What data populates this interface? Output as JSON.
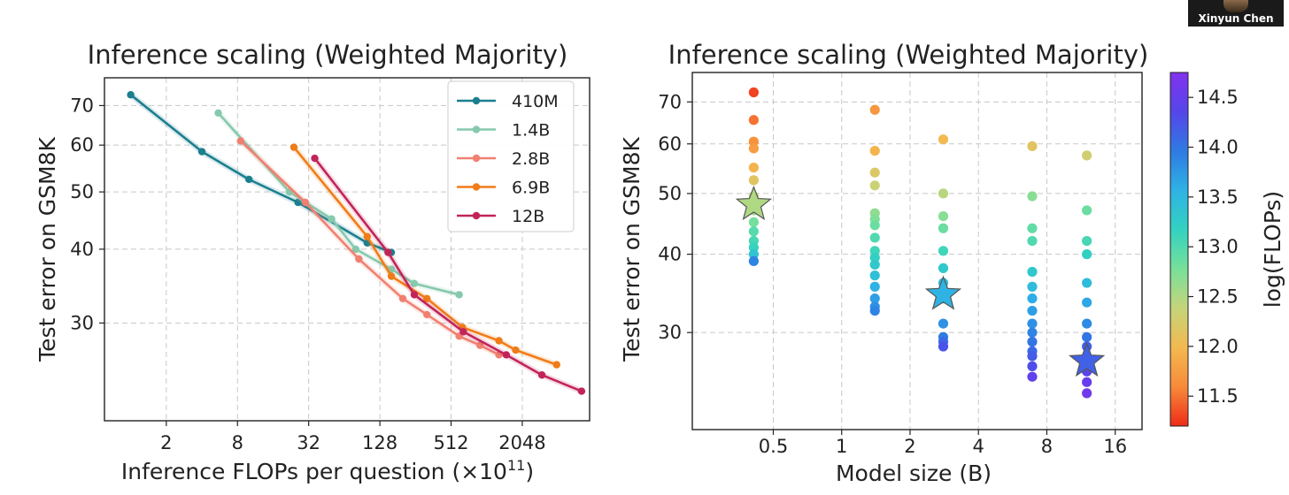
{
  "presenter": {
    "name": "Xinyun Chen"
  },
  "chart_data": [
    {
      "type": "line",
      "title": "Inference scaling (Weighted Majority)",
      "xlabel": "Inference FLOPs per question (×10",
      "xlabel_sup": "11",
      "xlabel_suffix": ")",
      "ylabel": "Test error on GSM8K",
      "x_scale": "log2",
      "y_scale": "log",
      "xlim": [
        0.6,
        7600
      ],
      "ylim": [
        20.5,
        78
      ],
      "xticks": [
        2,
        8,
        32,
        128,
        512,
        2048
      ],
      "xtick_labels": [
        "2",
        "8",
        "32",
        "128",
        "512",
        "2048"
      ],
      "yticks": [
        30,
        40,
        50,
        60,
        70
      ],
      "ytick_labels": [
        "30",
        "40",
        "50",
        "60",
        "70"
      ],
      "grid": true,
      "legend_position": "top-right",
      "series": [
        {
          "name": "410M",
          "color": "#1b7f8e",
          "x": [
            1,
            4,
            10,
            26,
            100,
            160
          ],
          "y": [
            73,
            58.5,
            52.5,
            48,
            41,
            39.5
          ]
        },
        {
          "name": "1.4B",
          "color": "#86c9ad",
          "x": [
            5.5,
            22,
            50,
            80,
            160,
            250,
            600
          ],
          "y": [
            68,
            50,
            45,
            40,
            37,
            35,
            33.5
          ]
        },
        {
          "name": "2.8B",
          "color": "#f08070",
          "x": [
            8.5,
            30,
            85,
            200,
            320,
            600,
            900,
            1300
          ],
          "y": [
            61,
            48,
            38.5,
            33,
            31,
            28.5,
            27.5,
            26.5
          ]
        },
        {
          "name": "6.9B",
          "color": "#f07c18",
          "x": [
            24,
            100,
            160,
            320,
            640,
            1300,
            1800,
            4000
          ],
          "y": [
            59.5,
            42,
            36,
            33,
            29.5,
            28,
            27,
            25.5
          ]
        },
        {
          "name": "12B",
          "color": "#c2245a",
          "x": [
            36,
            150,
            250,
            650,
            1500,
            3000,
            6500
          ],
          "y": [
            57,
            39.5,
            33.5,
            29,
            26.5,
            24.5,
            23
          ]
        }
      ]
    },
    {
      "type": "scatter",
      "title": "Inference scaling (Weighted Majority)",
      "xlabel": "Model size (B)",
      "ylabel": "Test error on GSM8K",
      "x_scale": "log2",
      "y_scale": "log",
      "xlim": [
        0.22,
        21
      ],
      "ylim": [
        21,
        78
      ],
      "xticks": [
        0.5,
        1,
        2,
        4,
        8,
        16
      ],
      "xtick_labels": [
        "0.5",
        "1",
        "2",
        "4",
        "8",
        "16"
      ],
      "yticks": [
        30,
        40,
        50,
        60,
        70
      ],
      "ytick_labels": [
        "30",
        "40",
        "50",
        "60",
        "70"
      ],
      "grid": true,
      "colorbar": {
        "label": "log(FLOPs)",
        "range": [
          11.2,
          14.75
        ],
        "ticks": [
          11.5,
          12.0,
          12.5,
          13.0,
          13.5,
          14.0,
          14.5
        ],
        "tick_labels": [
          "11.5",
          "12.0",
          "12.5",
          "13.0",
          "13.5",
          "14.0",
          "14.5"
        ],
        "colors": [
          "#ef2b18",
          "#f88a3a",
          "#f3b950",
          "#c6d47a",
          "#78e09a",
          "#32d2c0",
          "#2fb2e6",
          "#2f7ae2",
          "#5546ea",
          "#8232ee"
        ]
      },
      "points": [
        {
          "x": 0.41,
          "y": 72.5,
          "c": 11.3
        },
        {
          "x": 0.41,
          "y": 65.5,
          "c": 11.5
        },
        {
          "x": 0.41,
          "y": 60.5,
          "c": 11.65
        },
        {
          "x": 0.41,
          "y": 59,
          "c": 11.75
        },
        {
          "x": 0.41,
          "y": 55,
          "c": 11.95
        },
        {
          "x": 0.41,
          "y": 52.5,
          "c": 12.15
        },
        {
          "x": 0.41,
          "y": 49.5,
          "c": 12.4
        },
        {
          "x": 0.41,
          "y": 47,
          "c": 12.6
        },
        {
          "x": 0.41,
          "y": 45,
          "c": 12.8
        },
        {
          "x": 0.41,
          "y": 43.5,
          "c": 12.95
        },
        {
          "x": 0.41,
          "y": 42,
          "c": 13.05
        },
        {
          "x": 0.41,
          "y": 41,
          "c": 13.15
        },
        {
          "x": 0.41,
          "y": 40,
          "c": 13.35
        },
        {
          "x": 0.41,
          "y": 39,
          "c": 13.9
        },
        {
          "x": 1.4,
          "y": 68,
          "c": 11.7
        },
        {
          "x": 1.4,
          "y": 58.5,
          "c": 11.95
        },
        {
          "x": 1.4,
          "y": 54,
          "c": 12.2
        },
        {
          "x": 1.4,
          "y": 51.5,
          "c": 12.35
        },
        {
          "x": 1.4,
          "y": 46.5,
          "c": 12.65
        },
        {
          "x": 1.4,
          "y": 45.5,
          "c": 12.75
        },
        {
          "x": 1.4,
          "y": 44.5,
          "c": 12.85
        },
        {
          "x": 1.4,
          "y": 42.5,
          "c": 13.0
        },
        {
          "x": 1.4,
          "y": 40.5,
          "c": 13.1
        },
        {
          "x": 1.4,
          "y": 39.5,
          "c": 13.2
        },
        {
          "x": 1.4,
          "y": 38.5,
          "c": 13.3
        },
        {
          "x": 1.4,
          "y": 37,
          "c": 13.4
        },
        {
          "x": 1.4,
          "y": 35.5,
          "c": 13.55
        },
        {
          "x": 1.4,
          "y": 34,
          "c": 13.7
        },
        {
          "x": 1.4,
          "y": 33,
          "c": 13.8
        },
        {
          "x": 1.4,
          "y": 32.5,
          "c": 13.9
        },
        {
          "x": 2.8,
          "y": 61,
          "c": 12.0
        },
        {
          "x": 2.8,
          "y": 50,
          "c": 12.45
        },
        {
          "x": 2.8,
          "y": 46,
          "c": 12.7
        },
        {
          "x": 2.8,
          "y": 44,
          "c": 12.85
        },
        {
          "x": 2.8,
          "y": 40.5,
          "c": 13.1
        },
        {
          "x": 2.8,
          "y": 38,
          "c": 13.3
        },
        {
          "x": 2.8,
          "y": 36,
          "c": 13.45
        },
        {
          "x": 2.8,
          "y": 34,
          "c": 13.6
        },
        {
          "x": 2.8,
          "y": 31,
          "c": 13.8
        },
        {
          "x": 2.8,
          "y": 29.5,
          "c": 13.95
        },
        {
          "x": 2.8,
          "y": 29,
          "c": 14.1
        },
        {
          "x": 2.8,
          "y": 28.5,
          "c": 14.25
        },
        {
          "x": 6.9,
          "y": 59.5,
          "c": 12.15
        },
        {
          "x": 6.9,
          "y": 49.5,
          "c": 12.7
        },
        {
          "x": 6.9,
          "y": 44,
          "c": 12.9
        },
        {
          "x": 6.9,
          "y": 42,
          "c": 13.0
        },
        {
          "x": 6.9,
          "y": 37.5,
          "c": 13.3
        },
        {
          "x": 6.9,
          "y": 35.5,
          "c": 13.45
        },
        {
          "x": 6.9,
          "y": 34,
          "c": 13.6
        },
        {
          "x": 6.9,
          "y": 32.5,
          "c": 13.7
        },
        {
          "x": 6.9,
          "y": 31,
          "c": 13.8
        },
        {
          "x": 6.9,
          "y": 30,
          "c": 13.9
        },
        {
          "x": 6.9,
          "y": 29,
          "c": 14.0
        },
        {
          "x": 6.9,
          "y": 28,
          "c": 14.1
        },
        {
          "x": 6.9,
          "y": 27.5,
          "c": 14.2
        },
        {
          "x": 6.9,
          "y": 26.5,
          "c": 14.3
        },
        {
          "x": 6.9,
          "y": 25.5,
          "c": 14.45
        },
        {
          "x": 12,
          "y": 57.5,
          "c": 12.3
        },
        {
          "x": 12,
          "y": 47,
          "c": 12.85
        },
        {
          "x": 12,
          "y": 42,
          "c": 13.05
        },
        {
          "x": 12,
          "y": 40,
          "c": 13.2
        },
        {
          "x": 12,
          "y": 36,
          "c": 13.45
        },
        {
          "x": 12,
          "y": 33.5,
          "c": 13.65
        },
        {
          "x": 12,
          "y": 31,
          "c": 13.85
        },
        {
          "x": 12,
          "y": 29.5,
          "c": 14.0
        },
        {
          "x": 12,
          "y": 28.5,
          "c": 14.15
        },
        {
          "x": 12,
          "y": 27,
          "c": 14.3
        },
        {
          "x": 12,
          "y": 26,
          "c": 14.4
        },
        {
          "x": 12,
          "y": 25,
          "c": 14.5
        },
        {
          "x": 12,
          "y": 24,
          "c": 14.6
        }
      ],
      "stars": [
        {
          "x": 0.41,
          "y": 48,
          "c": 12.5
        },
        {
          "x": 2.8,
          "y": 34.5,
          "c": 13.55
        },
        {
          "x": 12,
          "y": 27,
          "c": 14.15
        }
      ]
    }
  ]
}
